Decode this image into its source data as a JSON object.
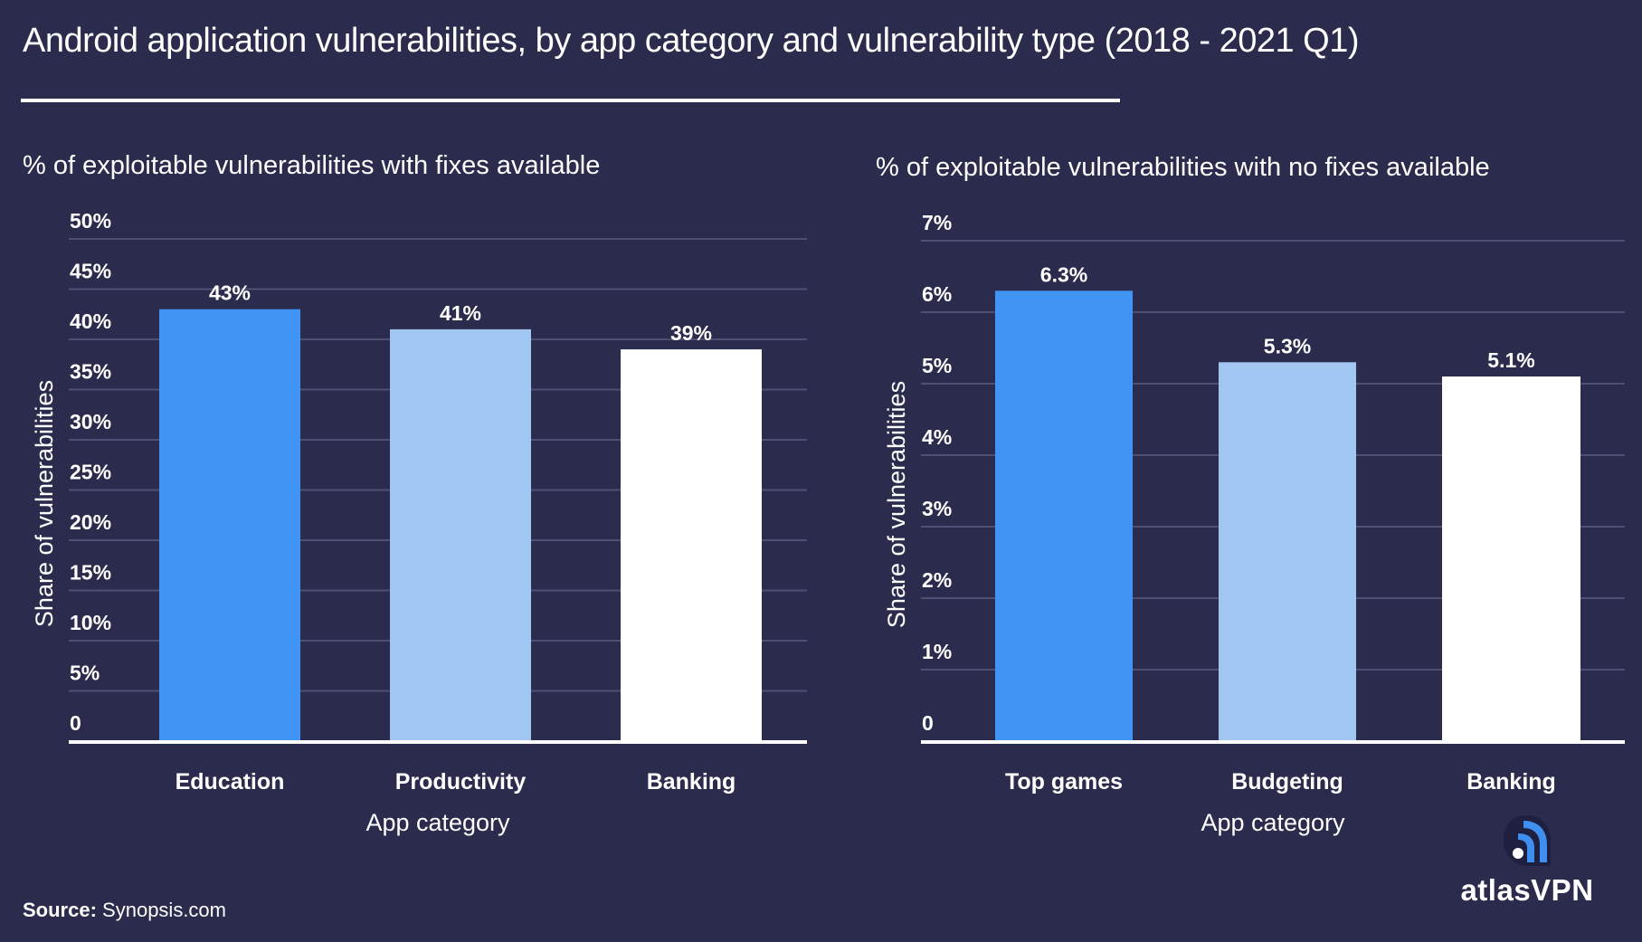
{
  "title": "Android application vulnerabilities, by app category and vulnerability type (2018 - 2021 Q1)",
  "colors": {
    "background": "#2a2b4d",
    "gridline": "#4d4f74",
    "axis": "#ffffff",
    "text": "#ffffff",
    "bar_1": "#3f94f4",
    "bar_2": "#a1c6f1",
    "bar_3": "#ffffff",
    "logo_accent": "#3f8ff0"
  },
  "source": {
    "label": "Source:",
    "value": "Synopsis.com"
  },
  "logo": {
    "text": "atlasVPN",
    "icon": "atlas-signal-icon"
  },
  "chart_data": [
    {
      "type": "bar",
      "title": "% of exploitable vulnerabilities with fixes available",
      "xlabel": "App category",
      "ylabel": "Share of vulnerabilities",
      "categories": [
        "Education",
        "Productivity",
        "Banking"
      ],
      "values": [
        43,
        41,
        39
      ],
      "value_labels": [
        "43%",
        "41%",
        "39%"
      ],
      "ylim": [
        0,
        50
      ],
      "yticks": [
        0,
        5,
        10,
        15,
        20,
        25,
        30,
        35,
        40,
        45,
        50
      ],
      "ytick_labels": [
        "0",
        "5%",
        "10%",
        "15%",
        "20%",
        "25%",
        "30%",
        "35%",
        "40%",
        "45%",
        "50%"
      ],
      "grid": true,
      "legend": "none"
    },
    {
      "type": "bar",
      "title": "% of exploitable vulnerabilities with no fixes available",
      "xlabel": "App category",
      "ylabel": "Share of vulnerabilities",
      "categories": [
        "Top games",
        "Budgeting",
        "Banking"
      ],
      "values": [
        6.3,
        5.3,
        5.1
      ],
      "value_labels": [
        "6.3%",
        "5.3%",
        "5.1%"
      ],
      "ylim": [
        0,
        7
      ],
      "yticks": [
        0,
        1,
        2,
        3,
        4,
        5,
        6,
        7
      ],
      "ytick_labels": [
        "0",
        "1%",
        "2%",
        "3%",
        "4%",
        "5%",
        "6%",
        "7%"
      ],
      "grid": true,
      "legend": "none"
    }
  ]
}
